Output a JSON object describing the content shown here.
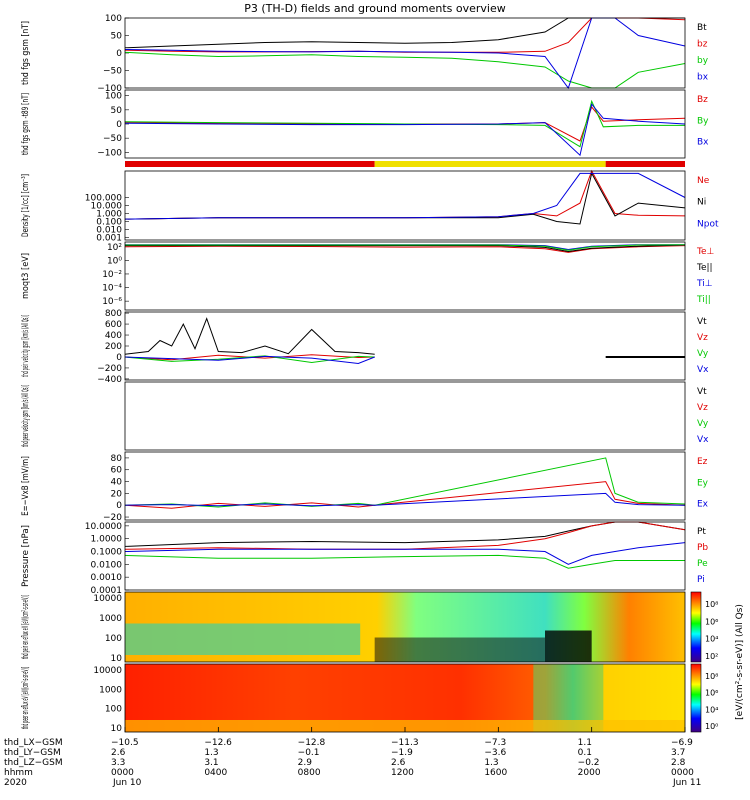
{
  "title": "P3 (TH-D) fields and ground moments overview",
  "colors": {
    "black": "#000000",
    "red": "#e00000",
    "green": "#00c800",
    "blue": "#0000e0",
    "yellow": "#f0e000"
  },
  "mode_bar": {
    "segments": [
      {
        "start": 0.0,
        "end": 10.7,
        "color": "red"
      },
      {
        "start": 10.7,
        "end": 20.6,
        "color": "yellow"
      },
      {
        "start": 20.6,
        "end": 24.0,
        "color": "red"
      }
    ]
  },
  "chart_data": [
    {
      "type": "line",
      "ylabel": "thd fgs gsm [nT]",
      "ylim": [
        -100,
        100
      ],
      "yticks": [
        "100",
        "50",
        "0",
        "−50",
        "−100"
      ],
      "yticks_values": [
        100,
        50,
        0,
        -50,
        -100
      ],
      "series": [
        {
          "name": "Bt",
          "color": "black",
          "x": [
            0,
            2,
            4,
            6,
            8,
            10,
            12,
            14,
            16,
            18,
            19,
            20,
            21,
            22,
            24
          ],
          "y": [
            15,
            20,
            25,
            30,
            32,
            30,
            28,
            30,
            38,
            60,
            100,
            100,
            100,
            100,
            100
          ]
        },
        {
          "name": "bz",
          "color": "red",
          "x": [
            0,
            2,
            4,
            6,
            8,
            10,
            12,
            14,
            16,
            18,
            19,
            20,
            21,
            22,
            24
          ],
          "y": [
            8,
            5,
            3,
            3,
            4,
            5,
            2,
            2,
            2,
            5,
            30,
            100,
            100,
            100,
            95
          ]
        },
        {
          "name": "by",
          "color": "green",
          "x": [
            0,
            2,
            4,
            6,
            8,
            10,
            12,
            14,
            16,
            18,
            19,
            20,
            21,
            22,
            24
          ],
          "y": [
            2,
            -5,
            -10,
            -8,
            -5,
            -10,
            -12,
            -15,
            -25,
            -40,
            -80,
            -100,
            -100,
            -55,
            -30
          ]
        },
        {
          "name": "bx",
          "color": "blue",
          "x": [
            0,
            2,
            4,
            6,
            8,
            10,
            12,
            14,
            16,
            18,
            19,
            20,
            21,
            22,
            24
          ],
          "y": [
            10,
            8,
            5,
            4,
            3,
            5,
            3,
            2,
            0,
            -10,
            -100,
            100,
            100,
            50,
            20
          ]
        }
      ]
    },
    {
      "type": "line",
      "ylabel": "thd fgs gsm -t89 [nT]",
      "ylim": [
        -120,
        120
      ],
      "yticks": [
        "100",
        "50",
        "0",
        "−50",
        "−100"
      ],
      "yticks_values": [
        100,
        50,
        0,
        -50,
        -100
      ],
      "series": [
        {
          "name": "Bz",
          "color": "red",
          "x": [
            0,
            4,
            8,
            12,
            16,
            18,
            19.5,
            20,
            20.5,
            22,
            24
          ],
          "y": [
            5,
            2,
            0,
            0,
            0,
            5,
            -60,
            60,
            10,
            15,
            20
          ]
        },
        {
          "name": "By",
          "color": "green",
          "x": [
            0,
            4,
            8,
            12,
            16,
            18,
            19.5,
            20,
            20.5,
            22,
            24
          ],
          "y": [
            8,
            5,
            3,
            0,
            -2,
            -5,
            -80,
            80,
            -10,
            -5,
            -5
          ]
        },
        {
          "name": "Bx",
          "color": "blue",
          "x": [
            0,
            4,
            8,
            12,
            16,
            18,
            19.5,
            20,
            20.5,
            22,
            24
          ],
          "y": [
            3,
            0,
            -2,
            -2,
            0,
            5,
            -110,
            70,
            20,
            10,
            0
          ]
        }
      ]
    },
    {
      "type": "line",
      "log": true,
      "ylabel": "Density [1/cc] [cm⁻³]",
      "ylim": [
        0.0005,
        200000
      ],
      "yticks": [
        "100.000",
        "10.000",
        "1.000",
        "0.100",
        "0.010",
        "0.001"
      ],
      "yticks_values": [
        100,
        10,
        1,
        0.1,
        0.01,
        0.001
      ],
      "series": [
        {
          "name": "Ne",
          "color": "red",
          "x": [
            0,
            4,
            8,
            12,
            16,
            17.5,
            18.5,
            19.5,
            20,
            21,
            22,
            24
          ],
          "y": [
            0.2,
            0.3,
            0.3,
            0.3,
            0.4,
            1,
            0.5,
            20,
            200000,
            1,
            0.6,
            0.5
          ]
        },
        {
          "name": "Ni",
          "color": "black",
          "x": [
            0,
            4,
            8,
            12,
            16,
            17.5,
            18.5,
            19.5,
            20,
            21,
            22,
            24
          ],
          "y": [
            0.2,
            0.3,
            0.3,
            0.3,
            0.3,
            0.8,
            0.1,
            0.05,
            100000,
            0.5,
            20,
            5
          ]
        },
        {
          "name": "Npot",
          "color": "blue",
          "x": [
            0,
            4,
            8,
            12,
            16,
            17.5,
            18.5,
            19.5,
            20,
            21,
            22,
            24
          ],
          "y": [
            0.2,
            0.3,
            0.3,
            0.3,
            0.4,
            1,
            10,
            100000,
            100000,
            100000,
            100000,
            100
          ]
        }
      ]
    },
    {
      "type": "line",
      "log": true,
      "ylabel": "moqt3 [eV]",
      "ylim": [
        5e-08,
        500
      ],
      "yticks": [
        "10²",
        "10⁰",
        "10⁻²",
        "10⁻⁴",
        "10⁻⁶"
      ],
      "yticks_values": [
        100,
        1,
        0.01,
        0.0001,
        1e-06
      ],
      "series": [
        {
          "name": "Te⊥",
          "color": "red",
          "x": [
            0,
            4,
            8,
            12,
            16,
            18,
            19,
            20,
            22,
            24
          ],
          "y": [
            100,
            120,
            110,
            90,
            100,
            50,
            15,
            50,
            100,
            150
          ]
        },
        {
          "name": "Te||",
          "color": "black",
          "x": [
            0,
            4,
            8,
            12,
            16,
            18,
            19,
            20,
            22,
            24
          ],
          "y": [
            150,
            150,
            150,
            150,
            150,
            80,
            20,
            60,
            120,
            180
          ]
        },
        {
          "name": "Ti⊥",
          "color": "blue",
          "x": [
            0,
            4,
            8,
            12,
            16,
            18,
            19,
            20,
            22,
            24
          ],
          "y": [
            200,
            200,
            200,
            200,
            200,
            150,
            40,
            120,
            200,
            200
          ]
        },
        {
          "name": "Ti||",
          "color": "green",
          "x": [
            0,
            4,
            8,
            12,
            16,
            18,
            19,
            20,
            22,
            24
          ],
          "y": [
            180,
            180,
            180,
            180,
            180,
            120,
            30,
            100,
            180,
            200
          ]
        }
      ]
    },
    {
      "type": "line",
      "ylabel": "thd peir velocity gsm [km/s (All Qs)]",
      "ylim": [
        -420,
        820
      ],
      "yticks": [
        "800",
        "600",
        "400",
        "200",
        "0",
        "−200",
        "−400"
      ],
      "yticks_values": [
        800,
        600,
        400,
        200,
        0,
        -200,
        -400
      ],
      "series": [
        {
          "name": "Vt",
          "color": "black",
          "x": [
            0,
            1,
            1.5,
            2,
            2.5,
            3,
            3.5,
            4,
            5,
            6,
            7,
            8,
            9,
            10,
            10.7
          ],
          "y": [
            50,
            100,
            300,
            200,
            600,
            150,
            700,
            100,
            80,
            200,
            60,
            500,
            100,
            80,
            50
          ]
        },
        {
          "name": "Vz",
          "color": "red",
          "x": [
            0,
            2,
            4,
            6,
            8,
            10,
            10.7
          ],
          "y": [
            0,
            -50,
            30,
            -20,
            40,
            -10,
            0
          ]
        },
        {
          "name": "Vy",
          "color": "green",
          "x": [
            0,
            2,
            4,
            6,
            8,
            10,
            10.7
          ],
          "y": [
            0,
            -80,
            -40,
            20,
            -100,
            10,
            0
          ]
        },
        {
          "name": "Vx",
          "color": "blue",
          "x": [
            0,
            2,
            4,
            6,
            8,
            10,
            10.7
          ],
          "y": [
            0,
            -30,
            -60,
            10,
            -20,
            -120,
            0
          ]
        }
      ],
      "late_segment": {
        "x": [
          20.6,
          24
        ],
        "y": [
          0,
          0
        ]
      }
    },
    {
      "type": "line",
      "ylabel": "thd peer velocity gsm [km/s (All Qs)]",
      "ylim": [
        -400,
        800
      ],
      "yticks": [],
      "series": [
        {
          "name": "Vt",
          "color": "black",
          "x": [],
          "y": []
        },
        {
          "name": "Vz",
          "color": "red",
          "x": [],
          "y": []
        },
        {
          "name": "Vy",
          "color": "green",
          "x": [],
          "y": []
        },
        {
          "name": "Vx",
          "color": "blue",
          "x": [],
          "y": []
        }
      ]
    },
    {
      "type": "line",
      "ylabel": "E=−VxB [mV/m]",
      "ylim": [
        -25,
        90
      ],
      "yticks": [
        "80",
        "60",
        "40",
        "20",
        "0",
        "−20"
      ],
      "yticks_values": [
        80,
        60,
        40,
        20,
        0,
        -20
      ],
      "series": [
        {
          "name": "Ez",
          "color": "red",
          "x": [
            0,
            2,
            4,
            6,
            8,
            10,
            10.7,
            20.6,
            21,
            22,
            24
          ],
          "y": [
            0,
            -5,
            3,
            -2,
            4,
            -3,
            0,
            40,
            10,
            3,
            0
          ]
        },
        {
          "name": "Ey",
          "color": "green",
          "x": [
            0,
            2,
            4,
            6,
            8,
            10,
            10.7,
            20.6,
            21,
            22,
            24
          ],
          "y": [
            0,
            2,
            -3,
            4,
            -2,
            3,
            0,
            80,
            20,
            5,
            2
          ]
        },
        {
          "name": "Ex",
          "color": "blue",
          "x": [
            0,
            2,
            4,
            6,
            8,
            10,
            10.7,
            20.6,
            21,
            22,
            24
          ],
          "y": [
            0,
            1,
            -1,
            2,
            -1,
            1,
            0,
            20,
            5,
            1,
            0
          ]
        }
      ]
    },
    {
      "type": "line",
      "log": true,
      "ylabel": "Pressure [nPa]",
      "ylim": [
        0.0001,
        20
      ],
      "yticks": [
        "10.0000",
        "1.0000",
        "0.1000",
        "0.0100",
        "0.0010",
        "0.0001"
      ],
      "yticks_values": [
        10,
        1,
        0.1,
        0.01,
        0.001,
        0.0001
      ],
      "series": [
        {
          "name": "Pt",
          "color": "black",
          "x": [
            0,
            4,
            8,
            12,
            16,
            18,
            19,
            20,
            21,
            22,
            24
          ],
          "y": [
            0.25,
            0.5,
            0.6,
            0.5,
            0.8,
            1.5,
            4,
            10,
            20,
            20,
            5
          ]
        },
        {
          "name": "Pb",
          "color": "red",
          "x": [
            0,
            4,
            8,
            12,
            16,
            18,
            19,
            20,
            21,
            22,
            24
          ],
          "y": [
            0.15,
            0.2,
            0.15,
            0.15,
            0.3,
            1,
            3,
            10,
            20,
            20,
            5
          ]
        },
        {
          "name": "Pe",
          "color": "green",
          "x": [
            0,
            4,
            8,
            12,
            16,
            18,
            19,
            20,
            21,
            22,
            24
          ],
          "y": [
            0.05,
            0.03,
            0.03,
            0.04,
            0.05,
            0.03,
            0.005,
            0.01,
            0.02,
            0.02,
            0.02
          ]
        },
        {
          "name": "Pi",
          "color": "blue",
          "x": [
            0,
            4,
            8,
            12,
            16,
            18,
            19,
            20,
            21,
            22,
            24
          ],
          "y": [
            0.1,
            0.15,
            0.15,
            0.15,
            0.15,
            0.1,
            0.01,
            0.05,
            0.1,
            0.2,
            0.5
          ]
        }
      ]
    },
    {
      "type": "heatmap",
      "ylabel": "thd peir en eflux eV [eV/(cm²-s-sr-eV)]",
      "yticks": [
        "10000",
        "1000",
        "100",
        "10"
      ],
      "yticks_values": [
        10000,
        1000,
        100,
        10
      ],
      "colorbar_ticks": [
        "10⁸",
        "10⁶",
        "10⁴",
        "10²"
      ]
    },
    {
      "type": "heatmap",
      "ylabel": "thd peer en eflux eV [eV/(cm²-s-sr-eV)]",
      "yticks": [
        "10000",
        "1000",
        "100",
        "10"
      ],
      "yticks_values": [
        10000,
        1000,
        100,
        10
      ],
      "colorbar_ticks": [
        "10⁸",
        "10⁶",
        "10⁴",
        "10⁰"
      ]
    }
  ],
  "colorbar_label": "[eV/(cm²-s-sr-eV)] (All Qs)",
  "xaxis": {
    "row_labels": [
      "thd_LX−GSM",
      "thd_LY−GSM",
      "thd_LZ−GSM",
      "hhmm",
      "2020"
    ],
    "columns": [
      {
        "hour": 0,
        "lines": [
          "−10.5",
          "2.6",
          "3.3",
          "0000",
          "Jun 10"
        ]
      },
      {
        "hour": 4,
        "lines": [
          "−12.6",
          "1.3",
          "3.1",
          "0400",
          ""
        ]
      },
      {
        "hour": 8,
        "lines": [
          "−12.8",
          "−0.1",
          "2.9",
          "0800",
          ""
        ]
      },
      {
        "hour": 12,
        "lines": [
          "−11.3",
          "−1.9",
          "2.6",
          "1200",
          ""
        ]
      },
      {
        "hour": 16,
        "lines": [
          "−7.3",
          "−3.6",
          "1.3",
          "1600",
          ""
        ]
      },
      {
        "hour": 20,
        "lines": [
          "1.1",
          "0.1",
          "−0.2",
          "2000",
          ""
        ]
      },
      {
        "hour": 24,
        "lines": [
          "−6.9",
          "3.7",
          "2.8",
          "0000",
          "Jun 11"
        ]
      }
    ]
  }
}
